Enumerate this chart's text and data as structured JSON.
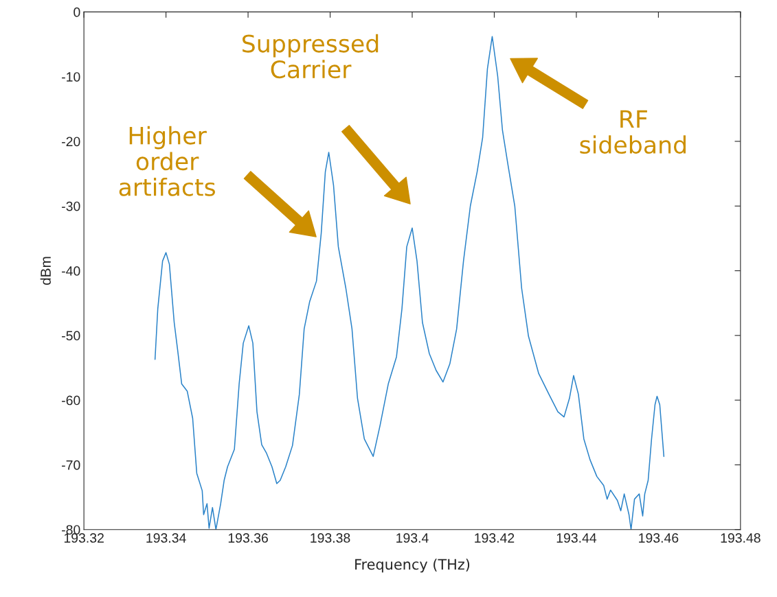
{
  "chart_data": {
    "type": "line",
    "xlabel": "Frequency (THz)",
    "ylabel": "dBm",
    "xlim": [
      193.32,
      193.48
    ],
    "xticks": [
      193.32,
      193.34,
      193.36,
      193.38,
      193.4,
      193.42,
      193.44,
      193.46,
      193.48
    ],
    "ylim": [
      -80,
      0
    ],
    "yticks": [
      -80,
      -70,
      -60,
      -50,
      -40,
      -30,
      -20,
      -10,
      0
    ],
    "grid": false,
    "legend": false,
    "marker": "none",
    "line_style": "solid",
    "annotations": [
      "Higher\norder\nartifacts",
      "Suppressed\nCarrier",
      "RF\nsideband"
    ],
    "series": [
      {
        "color": "#2a83c9",
        "x": [
          193.33733,
          193.338,
          193.33917,
          193.34,
          193.34083,
          193.342,
          193.34283,
          193.34383,
          193.34517,
          193.3465,
          193.3475,
          193.34883,
          193.34917,
          193.35,
          193.3505,
          193.35133,
          193.35217,
          193.35333,
          193.35417,
          193.355,
          193.35667,
          193.35783,
          193.35883,
          193.36017,
          193.36117,
          193.36217,
          193.36333,
          193.3645,
          193.36583,
          193.367,
          193.36783,
          193.36917,
          193.37083,
          193.3725,
          193.37367,
          193.375,
          193.37667,
          193.37783,
          193.37883,
          193.37967,
          193.38083,
          193.382,
          193.38383,
          193.38533,
          193.38667,
          193.38833,
          193.3905,
          193.39217,
          193.39417,
          193.39617,
          193.3975,
          193.39867,
          193.4,
          193.40117,
          193.4025,
          193.40417,
          193.40583,
          193.4075,
          193.40917,
          193.41083,
          193.4125,
          193.41417,
          193.41583,
          193.41717,
          193.41833,
          193.4195,
          193.42083,
          193.422,
          193.42333,
          193.425,
          193.42667,
          193.42833,
          193.43083,
          193.43333,
          193.4355,
          193.437,
          193.43833,
          193.43933,
          193.4405,
          193.44183,
          193.44333,
          193.445,
          193.44667,
          193.4475,
          193.44833,
          193.45,
          193.45083,
          193.45167,
          193.45283,
          193.45333,
          193.45417,
          193.45533,
          193.45617,
          193.45667,
          193.4575,
          193.45833,
          193.45917,
          193.45967,
          193.46033,
          193.46133
        ],
        "values": [
          -53.7,
          -45.9,
          -38.5,
          -37.2,
          -39,
          -48,
          -52.2,
          -57.5,
          -58.6,
          -62.8,
          -71.3,
          -74,
          -77.7,
          -76,
          -79.8,
          -76.6,
          -80,
          -76,
          -72.4,
          -70.3,
          -67.6,
          -57.5,
          -51.2,
          -48.5,
          -51.2,
          -61.8,
          -66.9,
          -68.2,
          -70.3,
          -72.9,
          -72.4,
          -70.3,
          -67,
          -59.1,
          -49,
          -44.8,
          -41.6,
          -34.2,
          -24.7,
          -21.7,
          -26.8,
          -36.3,
          -42.7,
          -49,
          -59.7,
          -66,
          -68.7,
          -63.9,
          -57.5,
          -53.3,
          -45.9,
          -36.3,
          -33.4,
          -38.5,
          -48,
          -52.8,
          -55.4,
          -57.2,
          -54.4,
          -49,
          -38.5,
          -30,
          -24.7,
          -19.4,
          -8.8,
          -3.8,
          -9.9,
          -18.3,
          -23.6,
          -30,
          -42.7,
          -50.1,
          -55.9,
          -59.1,
          -61.8,
          -62.6,
          -59.7,
          -56.2,
          -59.1,
          -66,
          -69.2,
          -71.8,
          -73.2,
          -75.3,
          -73.9,
          -75.5,
          -77.1,
          -74.5,
          -77.7,
          -80,
          -75.3,
          -74.5,
          -77.9,
          -74.5,
          -72.4,
          -66,
          -60.7,
          -59.4,
          -60.7,
          -68.7
        ]
      }
    ]
  }
}
